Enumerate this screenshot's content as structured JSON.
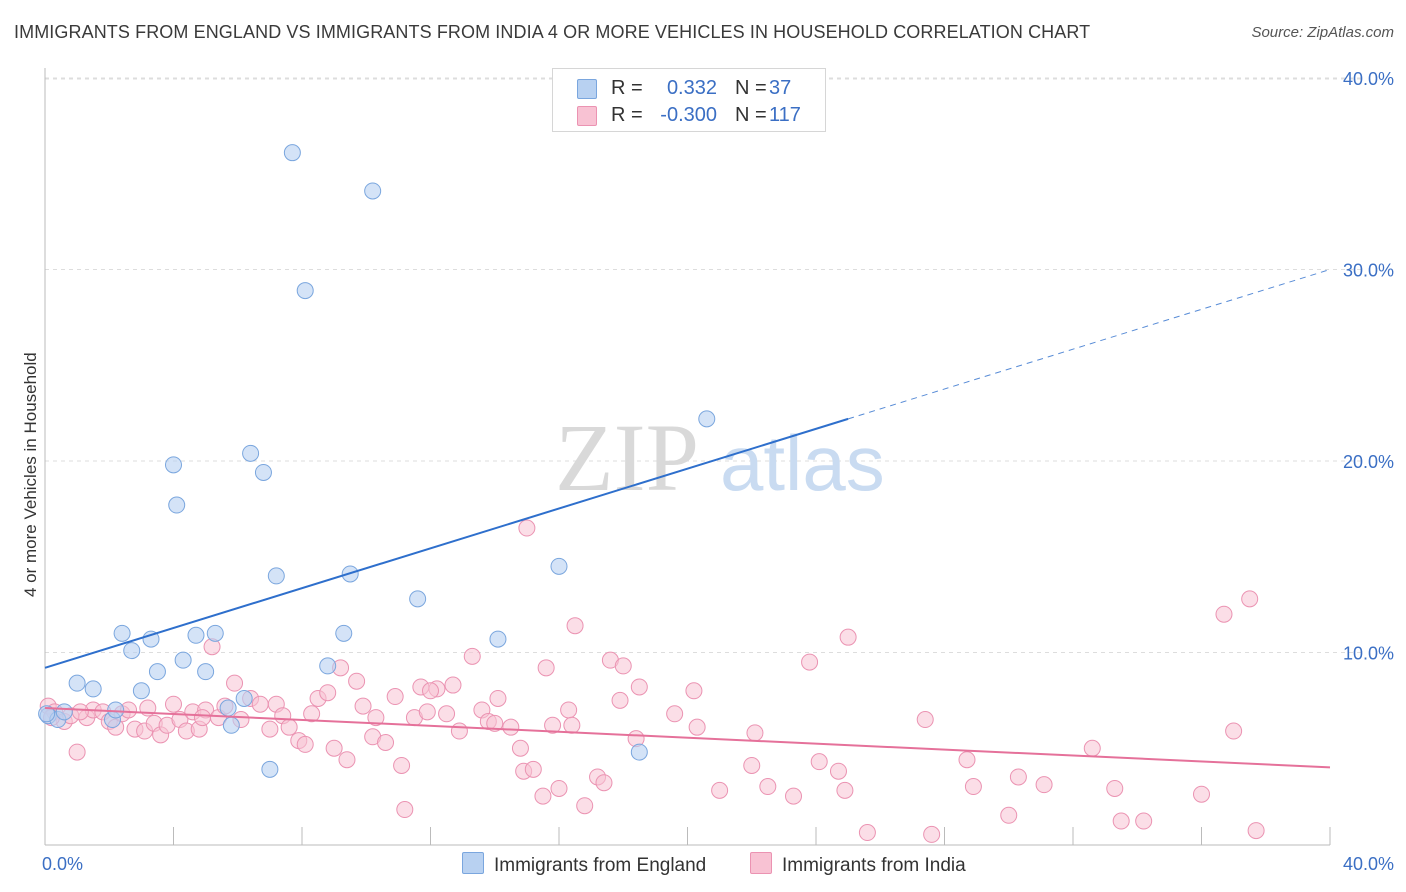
{
  "title": "IMMIGRANTS FROM ENGLAND VS IMMIGRANTS FROM INDIA 4 OR MORE VEHICLES IN HOUSEHOLD CORRELATION CHART",
  "source": "Source: ZipAtlas.com",
  "watermark": "ZIPatlas",
  "legend": {
    "england": {
      "r_label": "R =",
      "r_value": "0.332",
      "n_label": "N =",
      "n_value": "37"
    },
    "india": {
      "r_label": "R =",
      "r_value": "-0.300",
      "n_label": "N =",
      "n_value": "117"
    }
  },
  "bottom_legend": {
    "england": "Immigrants from England",
    "india": "Immigrants from India"
  },
  "colors": {
    "england_fill": "#b8d1f1",
    "england_stroke": "#7aa6de",
    "england_line": "#2e6fcc",
    "india_fill": "#f8c2d3",
    "india_stroke": "#eb93b2",
    "india_line": "#e5719a",
    "grid": "#dddddd",
    "axis_label": "#3b6fc4"
  },
  "chart_data": {
    "type": "scatter",
    "title": "IMMIGRANTS FROM ENGLAND VS IMMIGRANTS FROM INDIA 4 OR MORE VEHICLES IN HOUSEHOLD CORRELATION CHART",
    "xlabel": "",
    "ylabel": "4 or more Vehicles in Household",
    "xlim": [
      0,
      40
    ],
    "ylim": [
      0,
      40
    ],
    "x_tick_labels": [
      "0.0%",
      "40.0%"
    ],
    "y_tick_labels": [
      "10.0%",
      "20.0%",
      "30.0%",
      "40.0%"
    ],
    "y_ticks": [
      10,
      20,
      30,
      40
    ],
    "grid": true,
    "legend_position": "top-center",
    "series": [
      {
        "name": "Immigrants from England",
        "R": 0.332,
        "N": 37,
        "trend": {
          "x0": 0,
          "y0": 9.2,
          "x1": 25,
          "y1": 22.2,
          "dashed_to_x": 40,
          "dashed_to_y": 30
        },
        "points": [
          [
            0.1,
            6.7
          ],
          [
            0.4,
            6.5
          ],
          [
            0.6,
            6.9
          ],
          [
            1.0,
            8.4
          ],
          [
            1.5,
            8.1
          ],
          [
            2.1,
            6.5
          ],
          [
            2.2,
            7.0
          ],
          [
            2.4,
            11.0
          ],
          [
            2.7,
            10.1
          ],
          [
            3.0,
            8.0
          ],
          [
            3.3,
            10.7
          ],
          [
            3.5,
            9.0
          ],
          [
            4.0,
            19.8
          ],
          [
            4.1,
            17.7
          ],
          [
            4.3,
            9.6
          ],
          [
            4.7,
            10.9
          ],
          [
            5.0,
            9.0
          ],
          [
            5.3,
            11.0
          ],
          [
            5.7,
            7.1
          ],
          [
            5.8,
            6.2
          ],
          [
            6.2,
            7.6
          ],
          [
            6.4,
            20.4
          ],
          [
            6.8,
            19.4
          ],
          [
            7.0,
            3.9
          ],
          [
            7.2,
            14.0
          ],
          [
            7.7,
            36.1
          ],
          [
            8.1,
            28.9
          ],
          [
            8.8,
            9.3
          ],
          [
            9.3,
            11.0
          ],
          [
            9.5,
            14.1
          ],
          [
            10.2,
            34.1
          ],
          [
            11.6,
            12.8
          ],
          [
            14.1,
            10.7
          ],
          [
            16.0,
            14.5
          ],
          [
            18.5,
            4.8
          ],
          [
            20.6,
            22.2
          ],
          [
            0.05,
            6.8
          ]
        ]
      },
      {
        "name": "Immigrants from India",
        "R": -0.3,
        "N": 117,
        "trend": {
          "x0": 0,
          "y0": 7.1,
          "x1": 40,
          "y1": 4.0
        },
        "points": [
          [
            0.1,
            7.2
          ],
          [
            0.3,
            6.9
          ],
          [
            0.6,
            6.4
          ],
          [
            0.8,
            6.7
          ],
          [
            1.0,
            4.8
          ],
          [
            1.3,
            6.6
          ],
          [
            1.5,
            7.0
          ],
          [
            1.8,
            6.9
          ],
          [
            2.0,
            6.4
          ],
          [
            2.2,
            6.1
          ],
          [
            2.4,
            6.8
          ],
          [
            2.6,
            7.0
          ],
          [
            2.8,
            6.0
          ],
          [
            3.1,
            5.9
          ],
          [
            3.2,
            7.1
          ],
          [
            3.4,
            6.3
          ],
          [
            3.6,
            5.7
          ],
          [
            3.8,
            6.2
          ],
          [
            4.0,
            7.3
          ],
          [
            4.2,
            6.5
          ],
          [
            4.4,
            5.9
          ],
          [
            4.6,
            6.9
          ],
          [
            4.8,
            6.0
          ],
          [
            5.0,
            7.0
          ],
          [
            5.2,
            10.3
          ],
          [
            5.4,
            6.6
          ],
          [
            5.6,
            7.2
          ],
          [
            5.9,
            8.4
          ],
          [
            6.1,
            6.5
          ],
          [
            6.4,
            7.6
          ],
          [
            6.7,
            7.3
          ],
          [
            7.0,
            6.0
          ],
          [
            7.2,
            7.3
          ],
          [
            7.4,
            6.7
          ],
          [
            7.6,
            6.1
          ],
          [
            7.9,
            5.4
          ],
          [
            8.1,
            5.2
          ],
          [
            8.3,
            6.8
          ],
          [
            8.5,
            7.6
          ],
          [
            8.8,
            7.9
          ],
          [
            9.0,
            5.0
          ],
          [
            9.2,
            9.2
          ],
          [
            9.4,
            4.4
          ],
          [
            9.7,
            8.5
          ],
          [
            9.9,
            7.2
          ],
          [
            10.2,
            5.6
          ],
          [
            10.3,
            6.6
          ],
          [
            10.6,
            5.3
          ],
          [
            10.9,
            7.7
          ],
          [
            11.1,
            4.1
          ],
          [
            11.2,
            1.8
          ],
          [
            11.5,
            6.6
          ],
          [
            11.7,
            8.2
          ],
          [
            11.9,
            6.9
          ],
          [
            12.2,
            8.1
          ],
          [
            12.5,
            6.8
          ],
          [
            12.7,
            8.3
          ],
          [
            12.9,
            5.9
          ],
          [
            13.3,
            9.8
          ],
          [
            13.6,
            7.0
          ],
          [
            13.8,
            6.4
          ],
          [
            14.0,
            6.3
          ],
          [
            14.1,
            7.6
          ],
          [
            14.5,
            6.1
          ],
          [
            14.8,
            5.0
          ],
          [
            14.9,
            3.8
          ],
          [
            15.2,
            3.9
          ],
          [
            15.5,
            2.5
          ],
          [
            15.6,
            9.2
          ],
          [
            15.8,
            6.2
          ],
          [
            16.0,
            2.9
          ],
          [
            16.3,
            7.0
          ],
          [
            16.4,
            6.2
          ],
          [
            16.5,
            11.4
          ],
          [
            16.8,
            2.0
          ],
          [
            17.2,
            3.5
          ],
          [
            17.4,
            3.2
          ],
          [
            17.6,
            9.6
          ],
          [
            17.9,
            7.5
          ],
          [
            18.0,
            9.3
          ],
          [
            18.4,
            5.5
          ],
          [
            18.5,
            8.2
          ],
          [
            19.6,
            6.8
          ],
          [
            20.2,
            8.0
          ],
          [
            20.3,
            6.1
          ],
          [
            21.0,
            2.8
          ],
          [
            22.0,
            4.1
          ],
          [
            22.1,
            5.8
          ],
          [
            22.5,
            3.0
          ],
          [
            23.3,
            2.5
          ],
          [
            23.8,
            9.5
          ],
          [
            24.1,
            4.3
          ],
          [
            24.7,
            3.8
          ],
          [
            24.9,
            2.8
          ],
          [
            25.6,
            0.6
          ],
          [
            27.4,
            6.5
          ],
          [
            27.6,
            0.5
          ],
          [
            28.7,
            4.4
          ],
          [
            28.9,
            3.0
          ],
          [
            30.0,
            1.5
          ],
          [
            30.3,
            3.5
          ],
          [
            31.1,
            3.1
          ],
          [
            32.6,
            5.0
          ],
          [
            33.3,
            2.9
          ],
          [
            33.5,
            1.2
          ],
          [
            34.2,
            1.2
          ],
          [
            36.0,
            2.6
          ],
          [
            36.7,
            12.0
          ],
          [
            37.0,
            5.9
          ],
          [
            37.5,
            12.8
          ],
          [
            37.7,
            0.7
          ],
          [
            25.0,
            10.8
          ],
          [
            15.0,
            16.5
          ],
          [
            0.2,
            6.6
          ],
          [
            1.1,
            6.9
          ],
          [
            4.9,
            6.6
          ],
          [
            12.0,
            8.0
          ]
        ]
      }
    ]
  }
}
